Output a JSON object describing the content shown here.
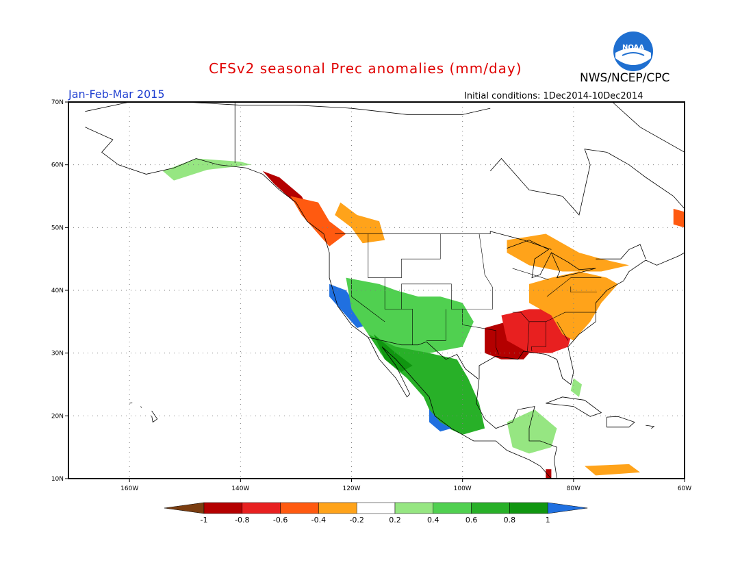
{
  "header": {
    "title": "CFSv2 seasonal Prec anomalies (mm/day)",
    "org": "NWS/NCEP/CPC",
    "season": "Jan-Feb-Mar 2015",
    "initial_conditions": "Initial conditions: 1Dec2014-10Dec2014"
  },
  "logo": {
    "icon": "noaa-logo-icon",
    "text": "NOAA"
  },
  "axes": {
    "lat_labels": [
      "70N",
      "60N",
      "50N",
      "40N",
      "30N",
      "20N",
      "10N"
    ],
    "lon_labels": [
      "160W",
      "140W",
      "120W",
      "100W",
      "80W",
      "60W"
    ],
    "lat_values": [
      70,
      60,
      50,
      40,
      30,
      20,
      10
    ],
    "lon_values": [
      -160,
      -140,
      -120,
      -100,
      -80,
      -60
    ],
    "lon_range": [
      -171,
      -60
    ],
    "lat_range": [
      10,
      70
    ],
    "grid": "dotted"
  },
  "colorbar": {
    "labels": [
      "-1",
      "-0.8",
      "-0.6",
      "-0.4",
      "-0.2",
      "0.2",
      "0.4",
      "0.6",
      "0.8",
      "1"
    ],
    "colors": [
      "#7a3d10",
      "#b40000",
      "#e82020",
      "#ff5a10",
      "#ffa31a",
      "#ffffff",
      "#96e682",
      "#50d050",
      "#28b028",
      "#109610",
      "#2070e0"
    ]
  },
  "anomaly_regions": [
    {
      "name": "alaska-wet",
      "color": "#96e682",
      "lon": -150,
      "lat": 59.5
    },
    {
      "name": "alaska-panhandle-dry",
      "color": "#b40000",
      "lon": -131,
      "lat": 54
    },
    {
      "name": "bc-dry",
      "color": "#ff5a10",
      "lon": -127,
      "lat": 51
    },
    {
      "name": "pnw-dry",
      "color": "#ffa31a",
      "lon": -117,
      "lat": 50
    },
    {
      "name": "california-wet",
      "color": "#2070e0",
      "lon": -122,
      "lat": 38
    },
    {
      "name": "southwest-wet",
      "color": "#50d050",
      "lon": -110,
      "lat": 33
    },
    {
      "name": "mexico-wet",
      "color": "#28b028",
      "lon": -104,
      "lat": 24
    },
    {
      "name": "gulf-coast-dry",
      "color": "#b40000",
      "lon": -91,
      "lat": 31
    },
    {
      "name": "southeast-dry",
      "color": "#e82020",
      "lon": -85,
      "lat": 33
    },
    {
      "name": "east-coast-dry",
      "color": "#ffa31a",
      "lon": -78,
      "lat": 38
    },
    {
      "name": "great-lakes-dry",
      "color": "#ffa31a",
      "lon": -82,
      "lat": 44
    },
    {
      "name": "central-america-wet",
      "color": "#96e682",
      "lon": -88,
      "lat": 16
    }
  ]
}
